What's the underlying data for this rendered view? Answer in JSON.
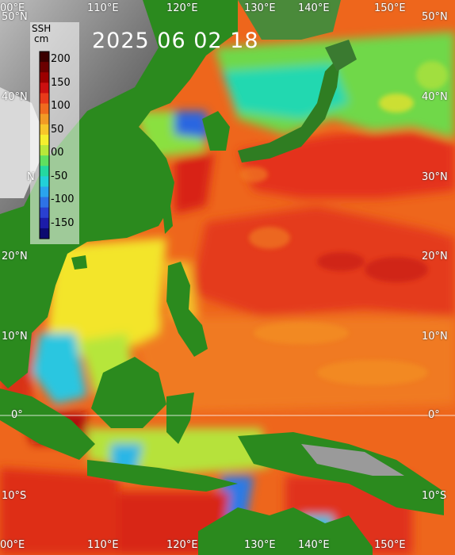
{
  "title": "2025  06  02  18",
  "colorbar": {
    "title_line1": "SSH",
    "title_line2": "cm",
    "ticks": [
      "200",
      "150",
      "100",
      "50",
      "00",
      "-50",
      "-100",
      "-150"
    ],
    "colors": [
      "#3a0000",
      "#6b0000",
      "#9c0000",
      "#cc1010",
      "#e83a1a",
      "#f06a1e",
      "#f29a25",
      "#f7c62a",
      "#f5ef2e",
      "#b8e83a",
      "#5fe060",
      "#24d8a0",
      "#22d0d8",
      "#2aa4ee",
      "#2e72e6",
      "#2a40d0",
      "#1c1ca8",
      "#0c0a70"
    ]
  },
  "lon_labels": [
    "00°E",
    "110°E",
    "120°E",
    "130°E",
    "140°E",
    "150°E"
  ],
  "lat_labels_left": [
    "50°N",
    "40°N",
    "N",
    "20°N",
    "10°N",
    "0°",
    "10°S"
  ],
  "lat_labels_right": [
    "50°N",
    "40°N",
    "30°N",
    "20°N",
    "10°N",
    "0°",
    "10°S"
  ],
  "palette": {
    "ocean_orange": "#ef6a1c",
    "ocean_red": "#e0301a",
    "ocean_yellow": "#f3e92e",
    "ocean_green": "#80e040",
    "ocean_cyan": "#22d8b0",
    "land_green": "#2b8a1e",
    "land_gray": "#8a8a8a"
  }
}
